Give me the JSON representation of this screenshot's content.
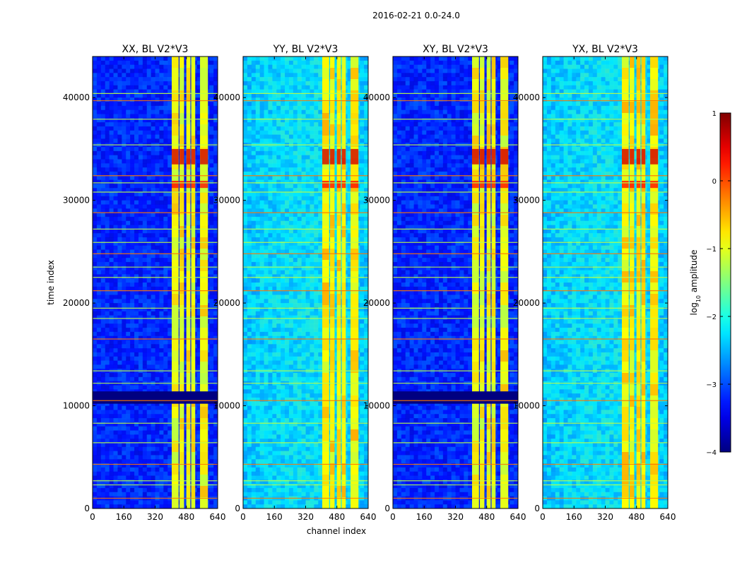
{
  "chart_data": {
    "type": "heatmap",
    "suptitle": "2016-02-21 0.0-24.0",
    "xlabel": "channel index",
    "ylabel": "time index",
    "xlim": [
      0,
      640
    ],
    "ylim": [
      0,
      44000
    ],
    "xticks": [
      0,
      160,
      320,
      480,
      640
    ],
    "yticks": [
      0,
      10000,
      20000,
      30000,
      40000
    ],
    "xtick_labels": [
      "0",
      "160",
      "320",
      "480",
      "640"
    ],
    "ytick_labels": [
      "0",
      "10000",
      "20000",
      "30000",
      "40000"
    ],
    "panels": [
      {
        "title": "XX, BL V2*V3",
        "base_level": -3.2,
        "bright_level": -1.0
      },
      {
        "title": "YY, BL V2*V3",
        "base_level": -2.4,
        "bright_level": -0.9
      },
      {
        "title": "XY, BL V2*V3",
        "base_level": -3.2,
        "bright_level": -1.0
      },
      {
        "title": "YX, BL V2*V3",
        "base_level": -2.4,
        "bright_level": -0.9
      }
    ],
    "bright_band_channels": [
      [
        405,
        440
      ],
      [
        445,
        468
      ],
      [
        480,
        500
      ],
      [
        505,
        525
      ],
      [
        550,
        590
      ]
    ],
    "rfi_time_indices": [
      1000,
      2300,
      2700,
      4300,
      6400,
      8300,
      10500,
      12200,
      13400,
      16500,
      18500,
      19500,
      21200,
      22500,
      23500,
      24800,
      25900,
      27200,
      28800,
      30800,
      31700,
      32400,
      35400,
      37900,
      39700,
      40400
    ],
    "dark_time_band": [
      10200,
      11400
    ],
    "strong_time_bands": [
      [
        33500,
        35000
      ],
      [
        31200,
        31900
      ]
    ],
    "colorbar": {
      "label_prefix": "log",
      "label_sub": "10",
      "label_suffix": " amplitude",
      "range": [
        -4,
        1
      ],
      "ticks": [
        1,
        0,
        -1,
        -2,
        -3,
        -4
      ],
      "tick_labels": [
        "1",
        "0",
        "−1",
        "−2",
        "−3",
        "−4"
      ],
      "colormap": "jet"
    }
  }
}
